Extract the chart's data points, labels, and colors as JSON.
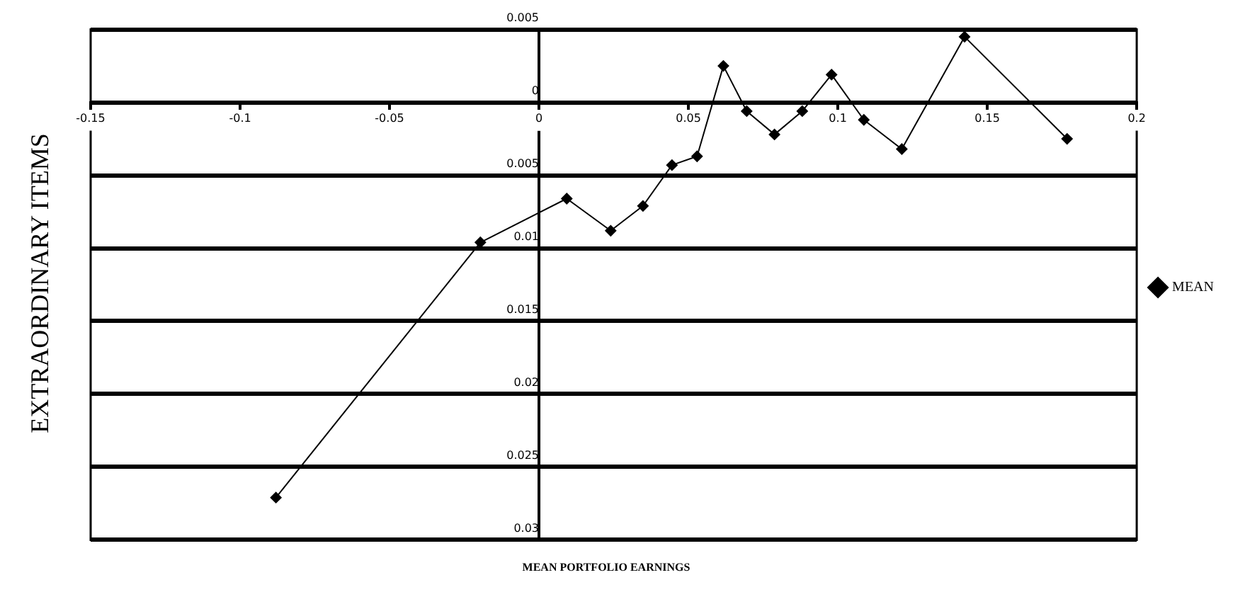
{
  "chart_data": {
    "type": "line",
    "xlabel": "MEAN PORTFOLIO EARNINGS",
    "ylabel": "EXTRAORDINARY ITEMS",
    "x": [
      -0.088,
      -0.0196,
      0.0093,
      0.024,
      0.0348,
      0.0445,
      0.0529,
      0.0617,
      0.0695,
      0.0788,
      0.0881,
      0.0979,
      0.1087,
      0.1214,
      0.1424,
      0.1767
    ],
    "series": [
      {
        "name": "MEAN",
        "color": "#000000",
        "values": [
          -0.0271,
          -0.0096,
          -0.0066,
          -0.0088,
          -0.0071,
          -0.0043,
          -0.0037,
          0.0025,
          -0.0006,
          -0.0022,
          -0.0006,
          0.0019,
          -0.0012,
          -0.0032,
          0.0045,
          -0.0025
        ]
      }
    ],
    "xlim": [
      -0.15,
      0.2
    ],
    "xticks": [
      -0.15,
      -0.1,
      -0.05,
      0,
      0.05,
      0.1,
      0.15,
      0.2
    ],
    "ylim": [
      -0.03,
      0.005
    ],
    "yticks": [
      0.005,
      0,
      {
        "value": -0.005,
        "label": "0.005"
      },
      {
        "value": -0.01,
        "label": "0.01"
      },
      {
        "value": -0.015,
        "label": "0.015"
      },
      {
        "value": -0.02,
        "label": "0.02"
      },
      {
        "value": -0.025,
        "label": "0.025"
      },
      {
        "value": -0.03,
        "label": "0.03"
      }
    ],
    "grid": "y",
    "legend": "right",
    "marker": "diamond",
    "line_style": "solid"
  }
}
